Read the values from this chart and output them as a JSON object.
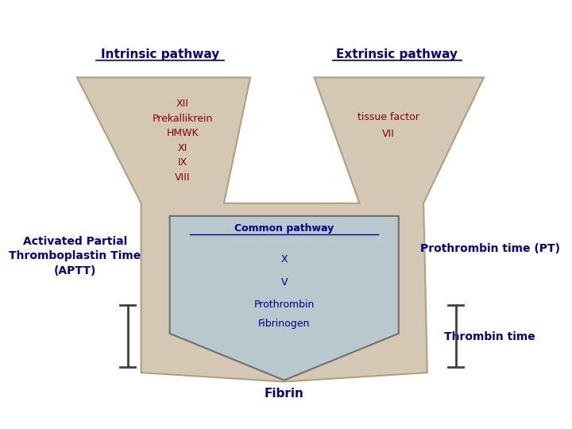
{
  "bg_color": "#ffffff",
  "title_intrinsic": "Intrinsic pathway",
  "title_extrinsic": "Extrinsic pathway",
  "intrinsic_factors": "XII\nPrekallikrein\nHMWK\nXI\nIX\nVIII",
  "extrinsic_factors": "tissue factor\nVII",
  "common_pathway_title": "Common pathway",
  "common_factors_list": [
    "X",
    "V",
    "Prothrombin",
    "Fibrinogen"
  ],
  "aptt_label": "Activated Partial\nThromboplastin Time\n(APTT)",
  "pt_label": "Prothrombin time (PT)",
  "thrombin_label": "Thrombin time",
  "fibrin_label": "Fibrin",
  "funnel_color": "#d4c8b4",
  "common_bg_color": "#b8c8cc",
  "factor_color": "#8b0000",
  "title_color": "#00008b",
  "label_color": "#00008b",
  "funnel_edge_color": "#b0a080",
  "common_edge_color": "#707070"
}
